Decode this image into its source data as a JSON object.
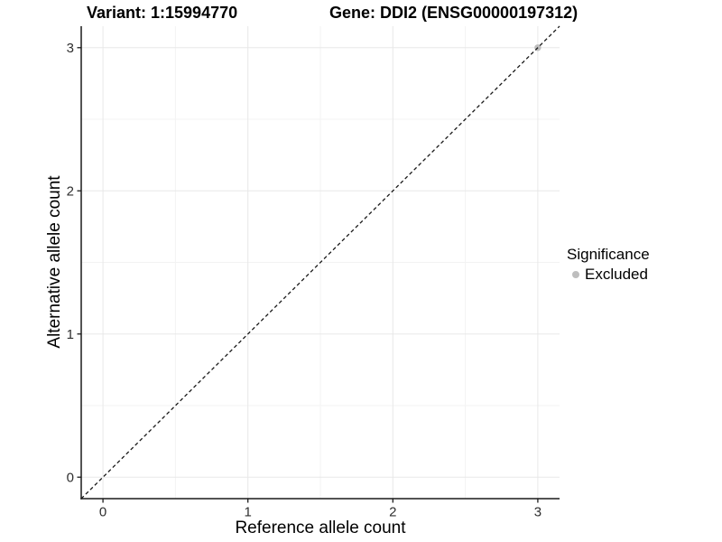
{
  "header": {
    "variant_title": "Variant: 1:15994770",
    "gene_title": "Gene: DDI2 (ENSG00000197312)"
  },
  "chart_data": {
    "type": "scatter",
    "xlabel": "Reference allele count",
    "ylabel": "Alternative allele count",
    "xlim": [
      -0.15,
      3.15
    ],
    "ylim": [
      -0.15,
      3.15
    ],
    "x_ticks": [
      0,
      1,
      2,
      3
    ],
    "y_ticks": [
      0,
      1,
      2,
      3
    ],
    "x_minor_ticks": [
      0.5,
      1.5,
      2.5
    ],
    "y_minor_ticks": [
      0.5,
      1.5,
      2.5
    ],
    "grid": "major and minor gridlines on white panel",
    "points": [
      {
        "x": 3,
        "y": 3,
        "significance": "Excluded",
        "color": "#bebebe"
      }
    ],
    "identity_line": {
      "slope": 1,
      "intercept": 0,
      "style": "dashed",
      "color": "#1a1a1a"
    },
    "legend": {
      "title": "Significance",
      "position": "right",
      "items": [
        {
          "label": "Excluded",
          "color": "#bebebe"
        }
      ]
    }
  },
  "style_colors": {
    "background": "#ffffff",
    "grid_major": "#e8e8e8",
    "grid_minor": "#f3f3f3",
    "axis_line": "#1a1a1a",
    "tick_mark": "#1a1a1a",
    "tick_label": "#2e2e2e",
    "excluded_point": "#bebebe"
  }
}
